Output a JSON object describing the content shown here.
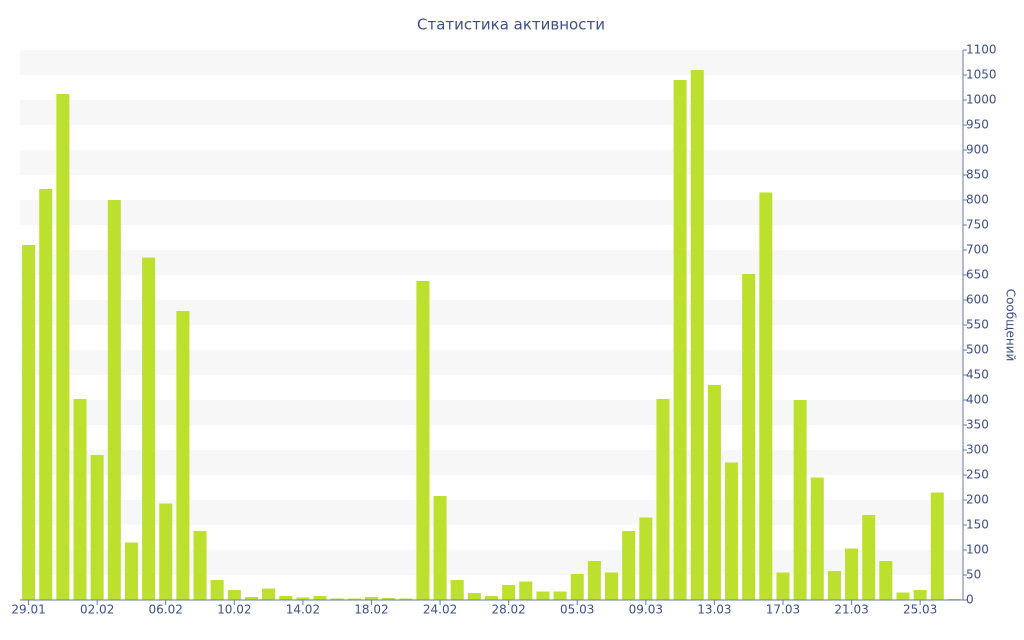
{
  "chart_data": {
    "type": "bar",
    "title": "Статистика активности",
    "y_label": "Сообщений",
    "categories": [
      "29.01",
      null,
      null,
      null,
      "02.02",
      null,
      null,
      null,
      "06.02",
      null,
      null,
      null,
      "10.02",
      null,
      null,
      null,
      "14.02",
      null,
      null,
      null,
      "18.02",
      null,
      null,
      null,
      "24.02",
      null,
      null,
      null,
      "28.02",
      null,
      null,
      null,
      "05.03",
      null,
      null,
      null,
      "09.03",
      null,
      null,
      null,
      "13.03",
      null,
      null,
      null,
      "17.03",
      null,
      null,
      null,
      "21.03",
      null,
      null,
      null,
      "25.03",
      null,
      null
    ],
    "values": [
      710,
      822,
      1012,
      402,
      290,
      800,
      115,
      685,
      193,
      578,
      138,
      40,
      20,
      6,
      23,
      8,
      5,
      8,
      3,
      3,
      6,
      4,
      3,
      638,
      208,
      40,
      14,
      8,
      30,
      37,
      17,
      17,
      52,
      78,
      55,
      138,
      165,
      402,
      1040,
      1060,
      430,
      275,
      652,
      815,
      55,
      400,
      245,
      58,
      103,
      170,
      78,
      15,
      20,
      215,
      2
    ],
    "color": "#bde02f",
    "ylim": [
      0,
      1100
    ],
    "yticks": [
      0,
      50,
      100,
      150,
      200,
      250,
      300,
      350,
      400,
      450,
      500,
      550,
      600,
      650,
      700,
      750,
      800,
      850,
      900,
      950,
      1000,
      1050,
      1100
    ],
    "grid": true
  }
}
